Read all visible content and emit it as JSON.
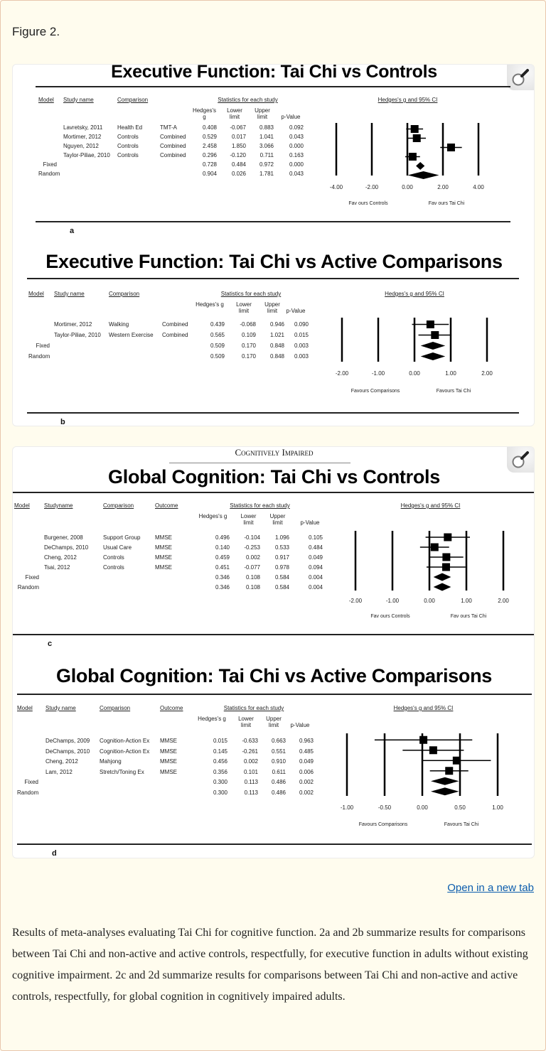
{
  "figure_label": "Figure 2.",
  "open_link": "Open in a new tab",
  "caption": "Results of meta-analyses evaluating Tai Chi for cognitive function. 2a and 2b summarize results for comparisons between Tai Chi and non-active and active controls, respectfully, for executive function in adults without existing cognitive impairment. 2c and 2d summarize results for comparisons between Tai Chi and non-active and active controls, respectfully, for global cognition in cognitively impaired adults.",
  "panel2_header": "Cognitively Impaired",
  "icons": {
    "zoom": "magnifier-icon"
  },
  "colors": {
    "background": "#fffcee",
    "border": "#e8c6ad",
    "link": "#0b5cad",
    "panel": "#ffffff"
  },
  "chart_data": [
    {
      "type": "forest",
      "panel": "a",
      "title": "Executive Function: Tai Chi vs Controls",
      "columns": [
        "Model",
        "Study name",
        "Comparison",
        "",
        "Hedges's g",
        "Lower limit",
        "Upper limit",
        "p-Value"
      ],
      "group_header": "Statistics for each study",
      "plot_header": "Hedges's g and 95% CI",
      "rows": [
        {
          "model": "",
          "study": "Lavretsky, 2011",
          "comparison": "Health Ed",
          "outcome": "TMT-A",
          "g": "0.408",
          "lower": "-0.067",
          "upper": "0.883",
          "p": "0.092"
        },
        {
          "model": "",
          "study": "Mortimer, 2012",
          "comparison": "Controls",
          "outcome": "Combined",
          "g": "0.529",
          "lower": "0.017",
          "upper": "1.041",
          "p": "0.043"
        },
        {
          "model": "",
          "study": "Nguyen, 2012",
          "comparison": "Controls",
          "outcome": "Combined",
          "g": "2.458",
          "lower": "1.850",
          "upper": "3.066",
          "p": "0.000"
        },
        {
          "model": "",
          "study": "Taylor-Piliae, 2010",
          "comparison": "Controls",
          "outcome": "Combined",
          "g": "0.296",
          "lower": "-0.120",
          "upper": "0.711",
          "p": "0.163"
        },
        {
          "model": "Fixed",
          "study": "",
          "comparison": "",
          "outcome": "",
          "g": "0.728",
          "lower": "0.484",
          "upper": "0.972",
          "p": "0.000"
        },
        {
          "model": "Random",
          "study": "",
          "comparison": "",
          "outcome": "",
          "g": "0.904",
          "lower": "0.026",
          "upper": "1.781",
          "p": "0.043"
        }
      ],
      "xticks": [
        "-4.00",
        "-2.00",
        "0.00",
        "2.00",
        "4.00"
      ],
      "xlim": [
        -4,
        4
      ],
      "favours_left": "Fav ours Controls",
      "favours_right": "Fav ours Tai Chi"
    },
    {
      "type": "forest",
      "panel": "b",
      "title": "Executive Function: Tai Chi vs Active Comparisons",
      "columns": [
        "Model",
        "Study name",
        "Comparison",
        "",
        "Hedges's g",
        "Lower limit",
        "Upper limit",
        "p-Value"
      ],
      "group_header": "Statistics for each study",
      "plot_header": "Hedges's g and 95% CI",
      "rows": [
        {
          "model": "",
          "study": "Mortimer, 2012",
          "comparison": "Walking",
          "outcome": "Combined",
          "g": "0.439",
          "lower": "-0.068",
          "upper": "0.946",
          "p": "0.090"
        },
        {
          "model": "",
          "study": "Taylor-Piliae, 2010",
          "comparison": "Western Exercise",
          "outcome": "Combined",
          "g": "0.565",
          "lower": "0.109",
          "upper": "1.021",
          "p": "0.015"
        },
        {
          "model": "Fixed",
          "study": "",
          "comparison": "",
          "outcome": "",
          "g": "0.509",
          "lower": "0.170",
          "upper": "0.848",
          "p": "0.003"
        },
        {
          "model": "Random",
          "study": "",
          "comparison": "",
          "outcome": "",
          "g": "0.509",
          "lower": "0.170",
          "upper": "0.848",
          "p": "0.003"
        }
      ],
      "xticks": [
        "-2.00",
        "-1.00",
        "0.00",
        "1.00",
        "2.00"
      ],
      "xlim": [
        -2,
        2
      ],
      "favours_left": "Favours Comparisons",
      "favours_right": "Favours Tai Chi"
    },
    {
      "type": "forest",
      "panel": "c",
      "title": "Global Cognition: Tai Chi vs Controls",
      "columns": [
        "Model",
        "Studyname",
        "Comparison",
        "Outcome",
        "Hedges's g",
        "Lower limit",
        "Upper limit",
        "p-Value"
      ],
      "group_header": "Statistics for each study",
      "plot_header": "Hedges's g and 95% CI",
      "rows": [
        {
          "model": "",
          "study": "Burgener, 2008",
          "comparison": "Support Group",
          "outcome": "MMSE",
          "g": "0.496",
          "lower": "-0.104",
          "upper": "1.096",
          "p": "0.105"
        },
        {
          "model": "",
          "study": "DeChamps, 2010",
          "comparison": "Usual Care",
          "outcome": "MMSE",
          "g": "0.140",
          "lower": "-0.253",
          "upper": "0.533",
          "p": "0.484"
        },
        {
          "model": "",
          "study": "Cheng, 2012",
          "comparison": "Controls",
          "outcome": "MMSE",
          "g": "0.459",
          "lower": "0.002",
          "upper": "0.917",
          "p": "0.049"
        },
        {
          "model": "",
          "study": "Tsai, 2012",
          "comparison": "Controls",
          "outcome": "MMSE",
          "g": "0.451",
          "lower": "-0.077",
          "upper": "0.978",
          "p": "0.094"
        },
        {
          "model": "Fixed",
          "study": "",
          "comparison": "",
          "outcome": "",
          "g": "0.346",
          "lower": "0.108",
          "upper": "0.584",
          "p": "0.004"
        },
        {
          "model": "Random",
          "study": "",
          "comparison": "",
          "outcome": "",
          "g": "0.346",
          "lower": "0.108",
          "upper": "0.584",
          "p": "0.004"
        }
      ],
      "xticks": [
        "-2.00",
        "-1.00",
        "0.00",
        "1.00",
        "2.00"
      ],
      "xlim": [
        -2,
        2
      ],
      "favours_left": "Fav ours Controls",
      "favours_right": "Fav ours Tai Chi"
    },
    {
      "type": "forest",
      "panel": "d",
      "title": "Global Cognition: Tai Chi vs Active Comparisons",
      "columns": [
        "Model",
        "Study name",
        "Comparison",
        "Outcome",
        "Hedges's g",
        "Lower limit",
        "Upper limit",
        "p-Value"
      ],
      "group_header": "Statistics for each study",
      "plot_header": "Hedges's g and 95% CI",
      "rows": [
        {
          "model": "",
          "study": "DeChamps, 2009",
          "comparison": "Cognition-Action Ex",
          "outcome": "MMSE",
          "g": "0.015",
          "lower": "-0.633",
          "upper": "0.663",
          "p": "0.963"
        },
        {
          "model": "",
          "study": "DeChamps, 2010",
          "comparison": "Cognition-Action Ex",
          "outcome": "MMSE",
          "g": "0.145",
          "lower": "-0.261",
          "upper": "0.551",
          "p": "0.485"
        },
        {
          "model": "",
          "study": "Cheng, 2012",
          "comparison": "Mahjong",
          "outcome": "MMSE",
          "g": "0.456",
          "lower": "0.002",
          "upper": "0.910",
          "p": "0.049"
        },
        {
          "model": "",
          "study": "Lam, 2012",
          "comparison": "Stretch/Toning Ex",
          "outcome": "MMSE",
          "g": "0.356",
          "lower": "0.101",
          "upper": "0.611",
          "p": "0.006"
        },
        {
          "model": "Fixed",
          "study": "",
          "comparison": "",
          "outcome": "",
          "g": "0.300",
          "lower": "0.113",
          "upper": "0.486",
          "p": "0.002"
        },
        {
          "model": "Random",
          "study": "",
          "comparison": "",
          "outcome": "",
          "g": "0.300",
          "lower": "0.113",
          "upper": "0.486",
          "p": "0.002"
        }
      ],
      "xticks": [
        "-1.00",
        "-0.50",
        "0.00",
        "0.50",
        "1.00"
      ],
      "xlim": [
        -1,
        1
      ],
      "favours_left": "Favours Comparisons",
      "favours_right": "Favours Tai Chi"
    }
  ]
}
